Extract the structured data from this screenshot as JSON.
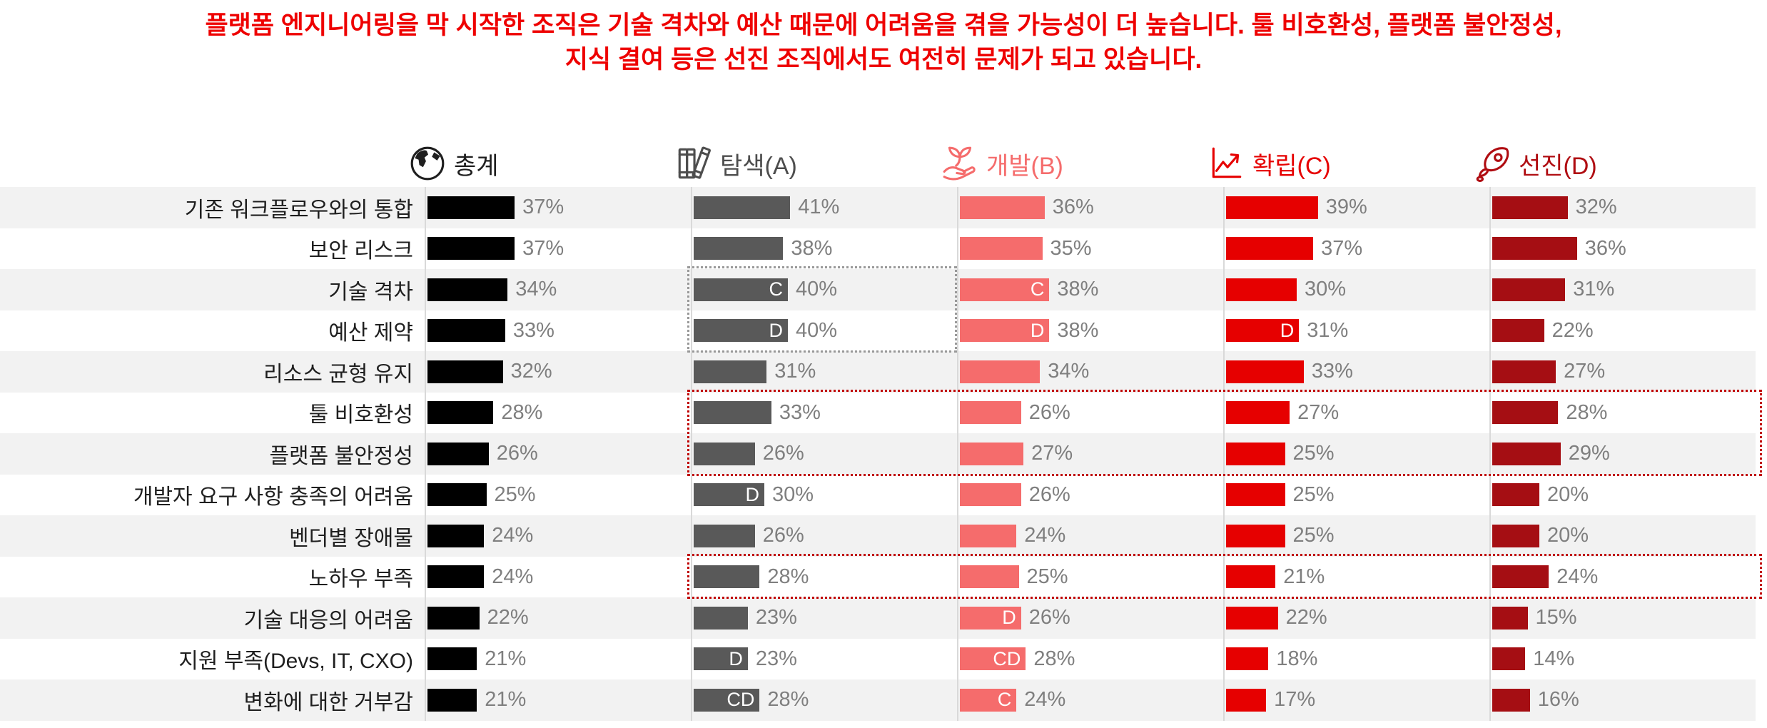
{
  "title": {
    "lines": [
      "플랫폼 엔지니어링을 막 시작한 조직은 기술 격차와 예산 때문에 어려움을 겪을 가능성이 더 높습니다. 툴 비호환성, 플랫폼 불안정성,",
      "지식 결여 등은 선진 조직에서도 여전히 문제가 되고 있습니다."
    ],
    "color": "#ee0000"
  },
  "chart_data": {
    "type": "bar",
    "orientation": "horizontal",
    "value_suffix": "%",
    "xlim": [
      0,
      45
    ],
    "categories": [
      "기존 워크플로우와의 통합",
      "보안 리스크",
      "기술 격차",
      "예산 제약",
      "리소스 균형 유지",
      "툴 비호환성",
      "플랫폼 불안정성",
      "개발자 요구 사항 충족의 어려움",
      "벤더별 장애물",
      "노하우 부족",
      "기술 대응의 어려움",
      "지원 부족(Devs, IT, CXO)",
      "변화에 대한 거부감"
    ],
    "series": [
      {
        "name": "총계",
        "icon": "globe-icon",
        "color": "#000000",
        "label_color": "#1f1f1f",
        "values": [
          37,
          37,
          34,
          33,
          32,
          28,
          26,
          25,
          24,
          24,
          22,
          21,
          21
        ],
        "markers": {}
      },
      {
        "name": "탐색(A)",
        "icon": "books-icon",
        "color": "#595959",
        "label_color": "#4d4d4d",
        "values": [
          41,
          38,
          40,
          40,
          31,
          33,
          26,
          30,
          26,
          28,
          23,
          23,
          28
        ],
        "markers": {
          "2": "C",
          "3": "D",
          "7": "D",
          "11": "D",
          "12": "CD"
        }
      },
      {
        "name": "개발(B)",
        "icon": "sprout-hand-icon",
        "color": "#f56c6c",
        "label_color": "#f56c6c",
        "values": [
          36,
          35,
          38,
          38,
          34,
          26,
          27,
          26,
          24,
          25,
          26,
          28,
          24
        ],
        "markers": {
          "2": "C",
          "3": "D",
          "10": "D",
          "11": "CD",
          "12": "C"
        }
      },
      {
        "name": "확립(C)",
        "icon": "line-chart-icon",
        "color": "#e60000",
        "label_color": "#e60000",
        "values": [
          39,
          37,
          30,
          31,
          33,
          27,
          25,
          25,
          25,
          21,
          22,
          18,
          17
        ],
        "markers": {
          "3": "D"
        }
      },
      {
        "name": "선진(D)",
        "icon": "rocket-icon",
        "color": "#a50e13",
        "label_color": "#b00d12",
        "values": [
          32,
          36,
          31,
          22,
          27,
          28,
          29,
          20,
          20,
          24,
          15,
          14,
          16
        ],
        "markers": {}
      }
    ],
    "annotations": [
      {
        "type": "dotted-box",
        "rows": [
          2,
          3
        ],
        "cols": [
          1,
          1
        ],
        "color": "#999999"
      },
      {
        "type": "dotted-box",
        "rows": [
          5,
          6
        ],
        "cols": [
          1,
          4
        ],
        "color": "#c00000"
      },
      {
        "type": "dotted-box",
        "rows": [
          9,
          9
        ],
        "cols": [
          1,
          4
        ],
        "color": "#c00000"
      }
    ]
  }
}
